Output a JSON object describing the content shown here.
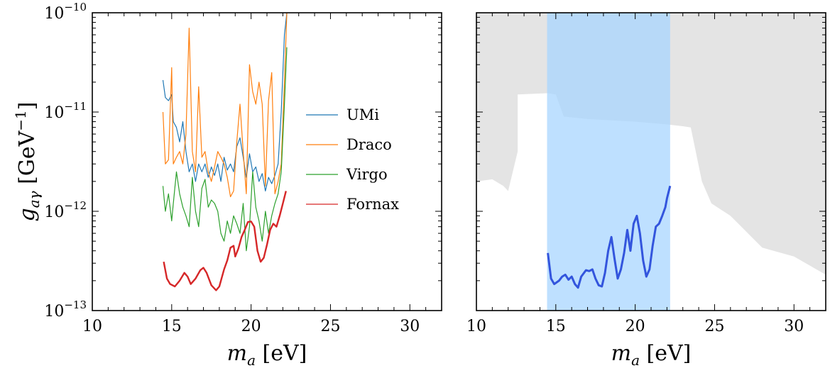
{
  "chart_data": [
    {
      "type": "line",
      "panel": "left",
      "xlabel": "m_a [eV]",
      "ylabel": "g_aγ [GeV^-1]",
      "xlim": [
        10,
        32
      ],
      "ylim": [
        1e-13,
        1e-10
      ],
      "yscale": "log",
      "grid": false,
      "legend_position": "right-center",
      "x_ticks": [
        10,
        15,
        20,
        25,
        30
      ],
      "x_tick_labels": [
        "10",
        "15",
        "20",
        "25",
        "30"
      ],
      "y_ticks": [
        1e-13,
        1e-12,
        1e-11,
        1e-10
      ],
      "y_tick_labels": [
        {
          "base": "10",
          "exp": "−13"
        },
        {
          "base": "10",
          "exp": "−12"
        },
        {
          "base": "10",
          "exp": "−11"
        },
        {
          "base": "10",
          "exp": "−10"
        }
      ],
      "series": [
        {
          "name": "UMi",
          "color": "#1f77b4",
          "points": [
            [
              14.45,
              2.1e-11
            ],
            [
              14.6,
              1.4e-11
            ],
            [
              14.8,
              1.3e-11
            ],
            [
              15.0,
              1.5e-11
            ],
            [
              15.1,
              8e-12
            ],
            [
              15.3,
              7e-12
            ],
            [
              15.5,
              5e-12
            ],
            [
              15.7,
              8e-12
            ],
            [
              15.9,
              4e-12
            ],
            [
              16.1,
              2.5e-12
            ],
            [
              16.3,
              3e-12
            ],
            [
              16.5,
              2e-12
            ],
            [
              16.7,
              3e-12
            ],
            [
              16.9,
              2.5e-12
            ],
            [
              17.1,
              3e-12
            ],
            [
              17.3,
              2.2e-12
            ],
            [
              17.5,
              2.8e-12
            ],
            [
              17.7,
              2.3e-12
            ],
            [
              17.9,
              3e-12
            ],
            [
              18.1,
              2e-12
            ],
            [
              18.3,
              3.5e-12
            ],
            [
              18.5,
              2.6e-12
            ],
            [
              18.7,
              3e-12
            ],
            [
              18.9,
              2.5e-12
            ],
            [
              19.1,
              4.5e-12
            ],
            [
              19.3,
              5.5e-12
            ],
            [
              19.5,
              3.5e-12
            ],
            [
              19.7,
              2.2e-12
            ],
            [
              19.9,
              3.8e-12
            ],
            [
              20.1,
              2.5e-12
            ],
            [
              20.3,
              2.8e-12
            ],
            [
              20.5,
              2e-12
            ],
            [
              20.7,
              2.4e-12
            ],
            [
              20.9,
              1.6e-12
            ],
            [
              21.1,
              2.2e-12
            ],
            [
              21.3,
              1.9e-12
            ],
            [
              21.5,
              2.3e-12
            ],
            [
              21.7,
              3e-12
            ],
            [
              21.9,
              1e-11
            ],
            [
              22.1,
              6e-11
            ],
            [
              22.25,
              1e-10
            ]
          ]
        },
        {
          "name": "Draco",
          "color": "#ff7f0e",
          "points": [
            [
              14.45,
              1e-11
            ],
            [
              14.6,
              3e-12
            ],
            [
              14.8,
              3.3e-12
            ],
            [
              15.0,
              2.8e-11
            ],
            [
              15.1,
              3e-12
            ],
            [
              15.3,
              3.5e-12
            ],
            [
              15.5,
              4e-12
            ],
            [
              15.7,
              3e-12
            ],
            [
              15.9,
              6e-12
            ],
            [
              16.1,
              7e-11
            ],
            [
              16.3,
              4e-12
            ],
            [
              16.5,
              2.5e-12
            ],
            [
              16.7,
              1.8e-11
            ],
            [
              16.9,
              3.5e-12
            ],
            [
              17.1,
              4e-12
            ],
            [
              17.3,
              2.5e-12
            ],
            [
              17.5,
              2e-12
            ],
            [
              17.7,
              2.8e-12
            ],
            [
              17.9,
              4e-12
            ],
            [
              18.1,
              3.5e-12
            ],
            [
              18.3,
              3e-12
            ],
            [
              18.5,
              2.2e-12
            ],
            [
              18.7,
              1.4e-12
            ],
            [
              18.9,
              1.6e-12
            ],
            [
              19.1,
              5e-12
            ],
            [
              19.3,
              1.2e-11
            ],
            [
              19.5,
              4e-12
            ],
            [
              19.7,
              1.5e-12
            ],
            [
              19.9,
              3e-11
            ],
            [
              20.1,
              1.6e-11
            ],
            [
              20.3,
              1.2e-11
            ],
            [
              20.5,
              2e-11
            ],
            [
              20.7,
              1.2e-11
            ],
            [
              20.9,
              1.8e-12
            ],
            [
              21.1,
              1.3e-11
            ],
            [
              21.3,
              2.5e-11
            ],
            [
              21.5,
              1.5e-12
            ],
            [
              21.7,
              2e-12
            ],
            [
              21.9,
              3e-12
            ],
            [
              22.1,
              2e-11
            ],
            [
              22.25,
              1e-10
            ]
          ]
        },
        {
          "name": "Virgo",
          "color": "#2ca02c",
          "points": [
            [
              14.45,
              1.8e-12
            ],
            [
              14.6,
              1e-12
            ],
            [
              14.8,
              1.5e-12
            ],
            [
              15.0,
              8e-13
            ],
            [
              15.1,
              1.2e-12
            ],
            [
              15.3,
              2.5e-12
            ],
            [
              15.5,
              1.5e-12
            ],
            [
              15.7,
              1.1e-12
            ],
            [
              15.9,
              9e-13
            ],
            [
              16.1,
              7e-13
            ],
            [
              16.3,
              2.2e-12
            ],
            [
              16.5,
              1e-12
            ],
            [
              16.7,
              7e-13
            ],
            [
              16.9,
              1.7e-12
            ],
            [
              17.1,
              2.1e-12
            ],
            [
              17.3,
              1.1e-12
            ],
            [
              17.5,
              1.3e-12
            ],
            [
              17.7,
              1.2e-12
            ],
            [
              17.9,
              1e-12
            ],
            [
              18.1,
              6e-13
            ],
            [
              18.3,
              5e-13
            ],
            [
              18.5,
              8e-13
            ],
            [
              18.7,
              6e-13
            ],
            [
              18.9,
              9e-13
            ],
            [
              19.1,
              7.5e-13
            ],
            [
              19.3,
              6e-13
            ],
            [
              19.5,
              1.2e-12
            ],
            [
              19.7,
              4e-13
            ],
            [
              19.9,
              7e-13
            ],
            [
              20.1,
              2.5e-12
            ],
            [
              20.3,
              1.1e-12
            ],
            [
              20.5,
              8e-13
            ],
            [
              20.7,
              5e-13
            ],
            [
              20.9,
              1e-12
            ],
            [
              21.1,
              6e-13
            ],
            [
              21.3,
              9e-13
            ],
            [
              21.5,
              1.2e-12
            ],
            [
              21.7,
              1.5e-12
            ],
            [
              21.9,
              2.5e-12
            ],
            [
              22.1,
              1.2e-11
            ],
            [
              22.25,
              4.5e-11
            ]
          ]
        },
        {
          "name": "Fornax",
          "color": "#d62728",
          "points": [
            [
              14.5,
              3.1e-13
            ],
            [
              14.7,
              2.1e-13
            ],
            [
              14.9,
              1.85e-13
            ],
            [
              15.2,
              1.75e-13
            ],
            [
              15.5,
              2e-13
            ],
            [
              15.8,
              2.4e-13
            ],
            [
              16.0,
              2.2e-13
            ],
            [
              16.2,
              1.85e-13
            ],
            [
              16.5,
              2.1e-13
            ],
            [
              16.8,
              2.55e-13
            ],
            [
              17.0,
              2.7e-13
            ],
            [
              17.2,
              2.4e-13
            ],
            [
              17.5,
              1.8e-13
            ],
            [
              17.8,
              1.6e-13
            ],
            [
              18.0,
              1.75e-13
            ],
            [
              18.3,
              2.6e-13
            ],
            [
              18.5,
              3.2e-13
            ],
            [
              18.7,
              4.3e-13
            ],
            [
              18.9,
              4.5e-13
            ],
            [
              19.0,
              3.5e-13
            ],
            [
              19.2,
              4.2e-13
            ],
            [
              19.4,
              5.5e-13
            ],
            [
              19.6,
              6.5e-13
            ],
            [
              19.8,
              7.8e-13
            ],
            [
              20.0,
              7.9e-13
            ],
            [
              20.2,
              7e-13
            ],
            [
              20.4,
              4e-13
            ],
            [
              20.6,
              3.1e-13
            ],
            [
              20.8,
              3.4e-13
            ],
            [
              21.0,
              4.6e-13
            ],
            [
              21.2,
              6.5e-13
            ],
            [
              21.4,
              7.5e-13
            ],
            [
              21.6,
              7e-13
            ],
            [
              21.8,
              9e-13
            ],
            [
              22.0,
              1.2e-12
            ],
            [
              22.2,
              1.6e-12
            ]
          ]
        }
      ]
    },
    {
      "type": "area",
      "panel": "right",
      "xlabel": "m_a [eV]",
      "xlim": [
        10,
        32
      ],
      "ylim": [
        1e-13,
        1e-10
      ],
      "yscale": "log",
      "grid": false,
      "x_ticks": [
        10,
        15,
        20,
        25,
        30
      ],
      "x_tick_labels": [
        "10",
        "15",
        "20",
        "25",
        "30"
      ],
      "excluded_region": {
        "color": "#e4e4e4",
        "boundary": [
          [
            10,
            2e-12
          ],
          [
            11,
            2.1e-12
          ],
          [
            11.7,
            1.8e-12
          ],
          [
            12,
            1.6e-12
          ],
          [
            12.6,
            4e-12
          ],
          [
            12.6,
            1.5e-11
          ],
          [
            14.5,
            1.55e-11
          ],
          [
            15.0,
            1.5e-11
          ],
          [
            15.5,
            9e-12
          ],
          [
            17,
            8.5e-12
          ],
          [
            20,
            8e-12
          ],
          [
            22,
            7.5e-12
          ],
          [
            23,
            7.2e-12
          ],
          [
            23.5,
            7e-12
          ],
          [
            24.2,
            2e-12
          ],
          [
            24.8,
            1.2e-12
          ],
          [
            26,
            9e-13
          ],
          [
            28,
            4.3e-13
          ],
          [
            30,
            3.5e-13
          ],
          [
            32,
            2.3e-13
          ]
        ]
      },
      "band": {
        "x_range": [
          14.45,
          22.2
        ],
        "color": "#a8d5ff"
      },
      "limit_curve": {
        "color": "#3355dd",
        "points": [
          [
            14.5,
            3.8e-13
          ],
          [
            14.7,
            2.1e-13
          ],
          [
            14.9,
            1.85e-13
          ],
          [
            15.2,
            2e-13
          ],
          [
            15.4,
            2.2e-13
          ],
          [
            15.6,
            2.3e-13
          ],
          [
            15.8,
            2.05e-13
          ],
          [
            16.0,
            2.2e-13
          ],
          [
            16.2,
            1.85e-13
          ],
          [
            16.4,
            1.7e-13
          ],
          [
            16.6,
            2.2e-13
          ],
          [
            16.9,
            2.55e-13
          ],
          [
            17.1,
            2.5e-13
          ],
          [
            17.3,
            2.6e-13
          ],
          [
            17.5,
            2.1e-13
          ],
          [
            17.7,
            1.8e-13
          ],
          [
            17.9,
            1.75e-13
          ],
          [
            18.1,
            2.4e-13
          ],
          [
            18.3,
            4e-13
          ],
          [
            18.5,
            5.5e-13
          ],
          [
            18.7,
            3.3e-13
          ],
          [
            18.9,
            2.1e-13
          ],
          [
            19.1,
            2.6e-13
          ],
          [
            19.3,
            3.8e-13
          ],
          [
            19.5,
            6.5e-13
          ],
          [
            19.7,
            4e-13
          ],
          [
            19.9,
            7.5e-13
          ],
          [
            20.1,
            9e-13
          ],
          [
            20.3,
            6e-13
          ],
          [
            20.5,
            3.2e-13
          ],
          [
            20.7,
            2.2e-13
          ],
          [
            20.9,
            2.6e-13
          ],
          [
            21.1,
            4.5e-13
          ],
          [
            21.3,
            7e-13
          ],
          [
            21.5,
            7.5e-13
          ],
          [
            21.7,
            9e-13
          ],
          [
            21.9,
            1.1e-12
          ],
          [
            22.0,
            1.35e-12
          ],
          [
            22.2,
            1.8e-12
          ]
        ]
      }
    }
  ],
  "ylabel_text": {
    "symbol": "g",
    "sub": "aγ",
    "open": " [GeV",
    "exp": "−1",
    "close": "]"
  },
  "xlabel_text": {
    "symbol": "m",
    "sub": "a",
    "unit": " [eV]"
  }
}
